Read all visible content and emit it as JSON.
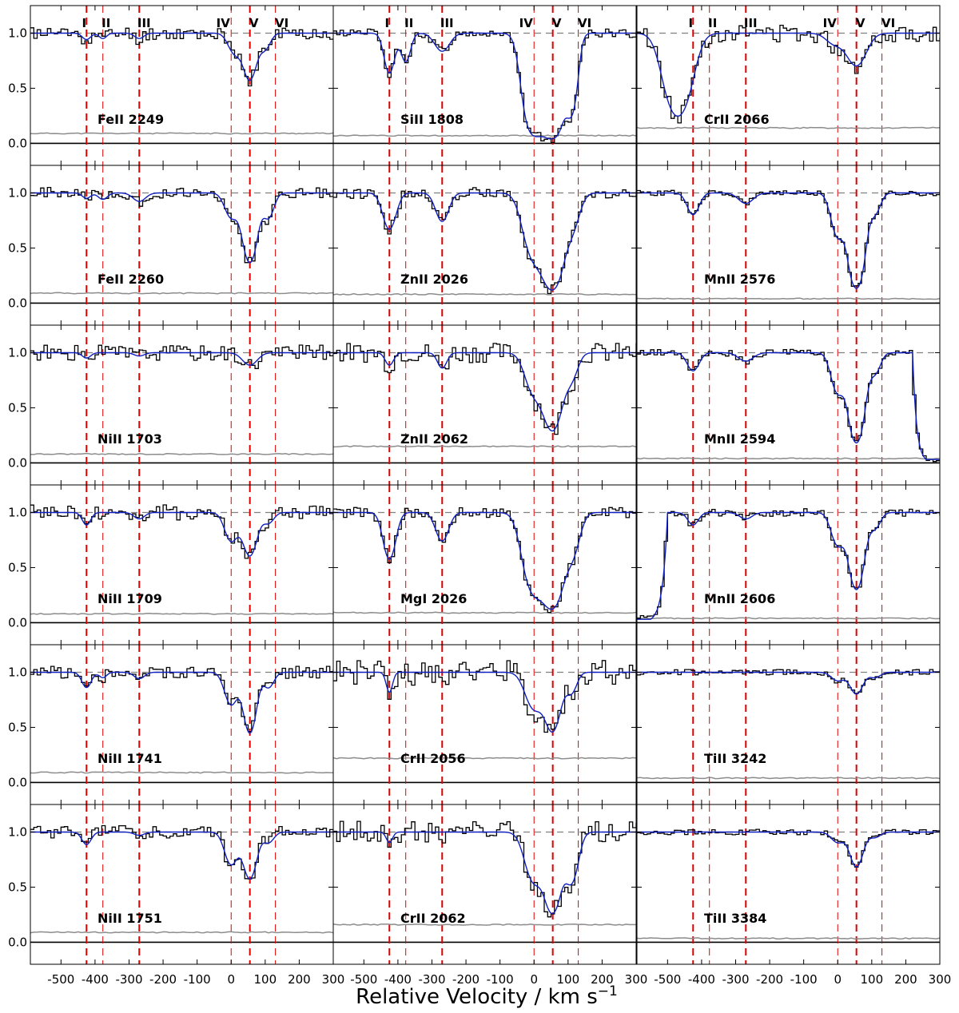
{
  "chart_data": {
    "type": "line",
    "xlabel": "Relative Velocity / km s",
    "xlabel_superscript": "−1",
    "xlim": [
      -590,
      300
    ],
    "ylim": [
      -0.2,
      1.25
    ],
    "x_ticks": [
      -500,
      -400,
      -300,
      -200,
      -100,
      0,
      100,
      200,
      300
    ],
    "y_ticks": [
      0.0,
      0.5,
      1.0
    ],
    "x_tick_labels": [
      "-500",
      "-400",
      "-300",
      "-200",
      "-100",
      "0",
      "100",
      "200",
      "300"
    ],
    "y_tick_labels": [
      "0.0",
      "0.5",
      "1.0"
    ],
    "components": [
      {
        "name": "I",
        "velocity": -425,
        "emphasis": "strong"
      },
      {
        "name": "II",
        "velocity": -377,
        "emphasis": "weak"
      },
      {
        "name": "III",
        "velocity": -270,
        "emphasis": "strong"
      },
      {
        "name": "IV",
        "velocity": 0,
        "emphasis": "weak"
      },
      {
        "name": "V",
        "velocity": 55,
        "emphasis": "strong"
      },
      {
        "name": "VI",
        "velocity": 130,
        "emphasis": "weak"
      }
    ],
    "colors": {
      "data": "#000000",
      "model": "#1020c0",
      "error": "#8c8c8c",
      "components": "#e00000",
      "continuum": "#808080"
    },
    "panels": [
      {
        "label": "FeII 2249",
        "show_component_labels": true,
        "noise": 0.06,
        "error_level": 0.09,
        "seed": 11,
        "lines": [
          {
            "v": -425,
            "d": 0.06,
            "w": 20
          },
          {
            "v": -377,
            "d": 0.05,
            "w": 18
          },
          {
            "v": -270,
            "d": 0.05,
            "w": 22
          },
          {
            "v": 10,
            "d": 0.2,
            "w": 30
          },
          {
            "v": 55,
            "d": 0.55,
            "w": 30
          },
          {
            "v": 100,
            "d": 0.15,
            "w": 25
          }
        ]
      },
      {
        "label": "SiII 1808",
        "show_component_labels": true,
        "noise": 0.04,
        "error_level": 0.07,
        "seed": 12,
        "lines": [
          {
            "v": -425,
            "d": 0.45,
            "w": 24
          },
          {
            "v": -377,
            "d": 0.3,
            "w": 22
          },
          {
            "v": -270,
            "d": 0.18,
            "w": 35
          },
          {
            "v": 0,
            "d": 2.5,
            "w": 40
          },
          {
            "v": 55,
            "d": 3.0,
            "w": 40
          },
          {
            "v": 110,
            "d": 1.2,
            "w": 25
          }
        ]
      },
      {
        "label": "CrII 2066",
        "show_component_labels": true,
        "noise": 0.08,
        "error_level": 0.14,
        "seed": 13,
        "lines": [
          {
            "v": -470,
            "d": 1.4,
            "w": 55
          },
          {
            "v": 55,
            "d": 0.35,
            "w": 45
          },
          {
            "v": -10,
            "d": 0.1,
            "w": 40
          }
        ]
      },
      {
        "label": "FeII 2260",
        "show_component_labels": false,
        "noise": 0.05,
        "error_level": 0.09,
        "seed": 21,
        "lines": [
          {
            "v": -425,
            "d": 0.05,
            "w": 20
          },
          {
            "v": -377,
            "d": 0.06,
            "w": 22
          },
          {
            "v": -270,
            "d": 0.08,
            "w": 30
          },
          {
            "v": 0,
            "d": 0.25,
            "w": 30
          },
          {
            "v": 55,
            "d": 1.0,
            "w": 32
          },
          {
            "v": 110,
            "d": 0.25,
            "w": 25
          }
        ]
      },
      {
        "label": "ZnII 2026",
        "show_component_labels": false,
        "noise": 0.05,
        "error_level": 0.08,
        "seed": 22,
        "lines": [
          {
            "v": -425,
            "d": 0.4,
            "w": 30
          },
          {
            "v": -270,
            "d": 0.3,
            "w": 30
          },
          {
            "v": 0,
            "d": 0.9,
            "w": 45
          },
          {
            "v": 55,
            "d": 2.0,
            "w": 40
          },
          {
            "v": 110,
            "d": 0.4,
            "w": 35
          }
        ]
      },
      {
        "label": "MnII 2576",
        "show_component_labels": false,
        "noise": 0.025,
        "error_level": 0.04,
        "seed": 23,
        "lines": [
          {
            "v": -425,
            "d": 0.22,
            "w": 28
          },
          {
            "v": -270,
            "d": 0.1,
            "w": 35
          },
          {
            "v": 0,
            "d": 0.5,
            "w": 30
          },
          {
            "v": 55,
            "d": 2.0,
            "w": 32
          },
          {
            "v": 110,
            "d": 0.2,
            "w": 25
          }
        ]
      },
      {
        "label": "NiII 1703",
        "show_component_labels": false,
        "noise": 0.07,
        "error_level": 0.08,
        "seed": 31,
        "lines": [
          {
            "v": -425,
            "d": 0.05,
            "w": 20
          },
          {
            "v": -270,
            "d": 0.03,
            "w": 25
          },
          {
            "v": 55,
            "d": 0.12,
            "w": 35
          }
        ]
      },
      {
        "label": "ZnII 2062",
        "show_component_labels": false,
        "noise": 0.09,
        "error_level": 0.15,
        "seed": 32,
        "lines": [
          {
            "v": -425,
            "d": 0.12,
            "w": 20
          },
          {
            "v": -270,
            "d": 0.15,
            "w": 22
          },
          {
            "v": 0,
            "d": 0.45,
            "w": 40
          },
          {
            "v": 55,
            "d": 1.2,
            "w": 40
          },
          {
            "v": 110,
            "d": 0.25,
            "w": 30
          }
        ]
      },
      {
        "label": "MnII 2594",
        "show_component_labels": false,
        "noise": 0.03,
        "error_level": 0.04,
        "seed": 33,
        "lines": [
          {
            "v": -425,
            "d": 0.18,
            "w": 28
          },
          {
            "v": -270,
            "d": 0.08,
            "w": 35
          },
          {
            "v": 0,
            "d": 0.45,
            "w": 30
          },
          {
            "v": 55,
            "d": 1.7,
            "w": 32
          },
          {
            "v": 110,
            "d": 0.2,
            "w": 25
          }
        ],
        "blend_right": {
          "start": 220,
          "depth": 3.5
        }
      },
      {
        "label": "NiII 1709",
        "show_component_labels": false,
        "noise": 0.07,
        "error_level": 0.08,
        "seed": 41,
        "lines": [
          {
            "v": -425,
            "d": 0.12,
            "w": 20
          },
          {
            "v": -270,
            "d": 0.06,
            "w": 25
          },
          {
            "v": 0,
            "d": 0.3,
            "w": 30
          },
          {
            "v": 55,
            "d": 0.5,
            "w": 32
          },
          {
            "v": 110,
            "d": 0.1,
            "w": 25
          }
        ]
      },
      {
        "label": "MgI 2026",
        "show_component_labels": false,
        "noise": 0.05,
        "error_level": 0.09,
        "seed": 42,
        "lines": [
          {
            "v": -425,
            "d": 0.55,
            "w": 28
          },
          {
            "v": -270,
            "d": 0.3,
            "w": 30
          },
          {
            "v": 0,
            "d": 1.3,
            "w": 45
          },
          {
            "v": 55,
            "d": 1.9,
            "w": 40
          },
          {
            "v": 110,
            "d": 0.5,
            "w": 35
          }
        ]
      },
      {
        "label": "MnII 2606",
        "show_component_labels": false,
        "noise": 0.035,
        "error_level": 0.04,
        "seed": 43,
        "lines": [
          {
            "v": -425,
            "d": 0.12,
            "w": 25
          },
          {
            "v": -270,
            "d": 0.06,
            "w": 30
          },
          {
            "v": 0,
            "d": 0.35,
            "w": 30
          },
          {
            "v": 55,
            "d": 1.2,
            "w": 32
          },
          {
            "v": 110,
            "d": 0.15,
            "w": 25
          }
        ],
        "blend_left": {
          "end": -560,
          "depth": 3.5
        }
      },
      {
        "label": "NiII 1741",
        "show_component_labels": false,
        "noise": 0.06,
        "error_level": 0.09,
        "seed": 51,
        "lines": [
          {
            "v": -425,
            "d": 0.15,
            "w": 22
          },
          {
            "v": -377,
            "d": 0.05,
            "w": 18
          },
          {
            "v": -270,
            "d": 0.06,
            "w": 25
          },
          {
            "v": 0,
            "d": 0.35,
            "w": 30
          },
          {
            "v": 55,
            "d": 0.8,
            "w": 28
          },
          {
            "v": 110,
            "d": 0.15,
            "w": 25
          }
        ]
      },
      {
        "label": "CrII 2056",
        "show_component_labels": false,
        "noise": 0.12,
        "error_level": 0.22,
        "seed": 52,
        "lines": [
          {
            "v": -425,
            "d": 0.2,
            "w": 15
          },
          {
            "v": 0,
            "d": 0.4,
            "w": 40
          },
          {
            "v": 55,
            "d": 0.75,
            "w": 35
          },
          {
            "v": 110,
            "d": 0.2,
            "w": 25
          }
        ]
      },
      {
        "label": "TiII 3242",
        "show_component_labels": false,
        "noise": 0.025,
        "error_level": 0.04,
        "seed": 53,
        "lines": [
          {
            "v": 0,
            "d": 0.08,
            "w": 30
          },
          {
            "v": 55,
            "d": 0.22,
            "w": 30
          },
          {
            "v": 110,
            "d": 0.05,
            "w": 25
          }
        ]
      },
      {
        "label": "NiII 1751",
        "show_component_labels": false,
        "noise": 0.06,
        "error_level": 0.09,
        "seed": 61,
        "lines": [
          {
            "v": -425,
            "d": 0.12,
            "w": 22
          },
          {
            "v": -270,
            "d": 0.03,
            "w": 25
          },
          {
            "v": 0,
            "d": 0.35,
            "w": 30
          },
          {
            "v": 55,
            "d": 0.55,
            "w": 30
          },
          {
            "v": 110,
            "d": 0.1,
            "w": 25
          }
        ]
      },
      {
        "label": "CrII 2062",
        "show_component_labels": false,
        "noise": 0.1,
        "error_level": 0.16,
        "seed": 62,
        "lines": [
          {
            "v": -425,
            "d": 0.1,
            "w": 15
          },
          {
            "v": 0,
            "d": 0.6,
            "w": 40
          },
          {
            "v": 55,
            "d": 1.3,
            "w": 35
          },
          {
            "v": 110,
            "d": 0.6,
            "w": 30
          }
        ]
      },
      {
        "label": "TiII 3384",
        "show_component_labels": false,
        "noise": 0.025,
        "error_level": 0.035,
        "seed": 63,
        "lines": [
          {
            "v": 0,
            "d": 0.1,
            "w": 30
          },
          {
            "v": 55,
            "d": 0.38,
            "w": 30
          },
          {
            "v": 110,
            "d": 0.05,
            "w": 25
          }
        ]
      }
    ]
  }
}
